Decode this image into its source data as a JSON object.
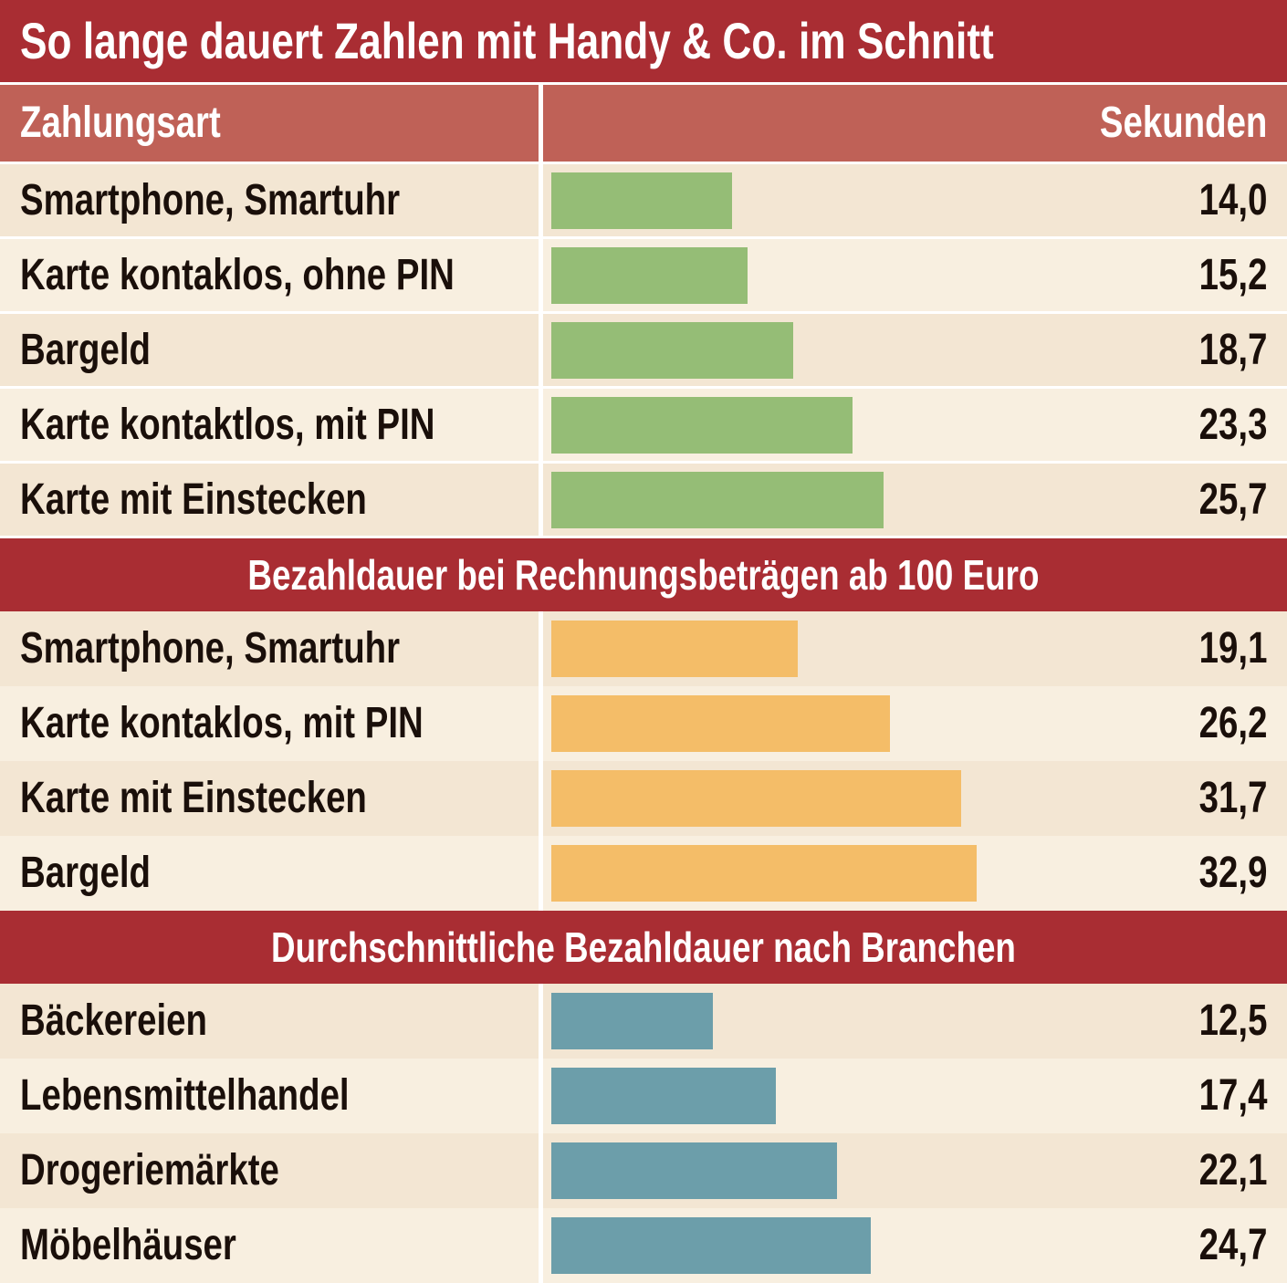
{
  "chart_data": {
    "type": "bar",
    "title": "So lange dauert Zahlen mit Handy & Co. im Schnitt",
    "column_headers": [
      "Zahlungsart",
      "Sekunden"
    ],
    "bar_scale_max": 50,
    "sections": [
      {
        "heading": "",
        "color": "#95bd76",
        "rows": [
          {
            "label": "Smartphone, Smartuhr",
            "value": 14.0,
            "display": "14,0"
          },
          {
            "label": "Karte kontaklos, ohne PIN",
            "value": 15.2,
            "display": "15,2"
          },
          {
            "label": "Bargeld",
            "value": 18.7,
            "display": "18,7"
          },
          {
            "label": "Karte kontaktlos, mit PIN",
            "value": 23.3,
            "display": "23,3"
          },
          {
            "label": "Karte mit Einstecken",
            "value": 25.7,
            "display": "25,7"
          }
        ]
      },
      {
        "heading": "Bezahldauer bei Rechnungsbeträgen ab 100 Euro",
        "color": "#f4bd68",
        "rows": [
          {
            "label": "Smartphone, Smartuhr",
            "value": 19.1,
            "display": "19,1"
          },
          {
            "label": "Karte kontaklos, mit PIN",
            "value": 26.2,
            "display": "26,2"
          },
          {
            "label": "Karte mit Einstecken",
            "value": 31.7,
            "display": "31,7"
          },
          {
            "label": "Bargeld",
            "value": 32.9,
            "display": "32,9"
          }
        ]
      },
      {
        "heading": "Durchschnittliche Bezahldauer nach Branchen",
        "color": "#6c9eaa",
        "rows": [
          {
            "label": "Bäckereien",
            "value": 12.5,
            "display": "12,5"
          },
          {
            "label": "Lebensmittelhandel",
            "value": 17.4,
            "display": "17,4"
          },
          {
            "label": "Drogeriemärkte",
            "value": 22.1,
            "display": "22,1"
          },
          {
            "label": "Möbelhäuser",
            "value": 24.7,
            "display": "24,7"
          }
        ]
      }
    ]
  }
}
